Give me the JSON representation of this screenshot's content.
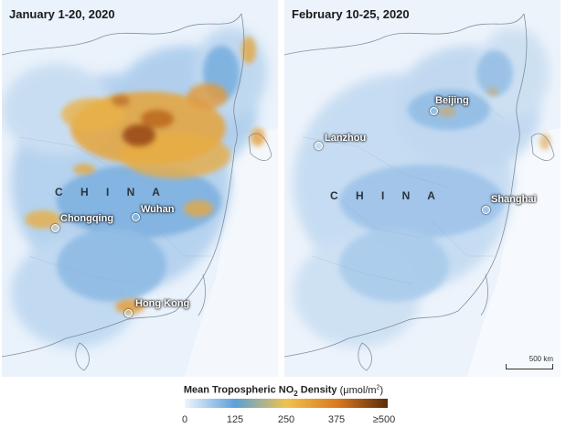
{
  "panels": [
    {
      "title": "January 1-20, 2020",
      "country_label": "C H I N A",
      "cities": [
        "Chongqing",
        "Wuhan",
        "Hong Kong"
      ]
    },
    {
      "title": "February 10-25, 2020",
      "country_label": "C H I N A",
      "cities": [
        "Beijing",
        "Lanzhou",
        "Shanghai"
      ],
      "scale_bar": "500 km"
    }
  ],
  "legend": {
    "title_prefix": "Mean Tropospheric NO",
    "title_sub": "2",
    "title_suffix": " Density ",
    "unit_prefix": "(μmol/m",
    "unit_sup": "2",
    "unit_suffix": ")",
    "ticks": [
      "0",
      "125",
      "250",
      "375",
      "≥500"
    ],
    "colors": [
      "#eef5fd",
      "#5c9fd8",
      "#f0c24e",
      "#d97a1f",
      "#5c2c0c"
    ]
  }
}
